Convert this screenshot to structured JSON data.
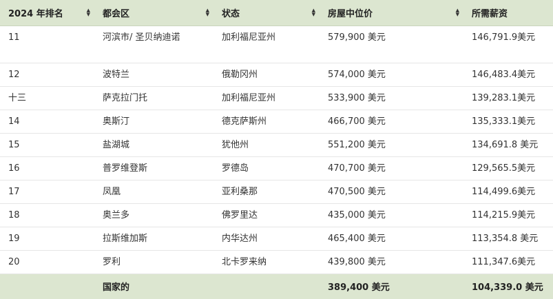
{
  "table": {
    "headers": [
      {
        "key": "rank",
        "label": "2024 年排名"
      },
      {
        "key": "metro",
        "label": "都会区"
      },
      {
        "key": "state",
        "label": "状态"
      },
      {
        "key": "price",
        "label": "房屋中位价"
      },
      {
        "key": "salary",
        "label": "所需薪资"
      }
    ],
    "sort_icon": "sort-updown-icon",
    "rows": [
      {
        "rank": "11",
        "metro": "河滨市/ 圣贝纳迪诺",
        "state": "加利福尼亚州",
        "price": "579,900 美元",
        "salary": "146,791.9美元"
      },
      {
        "rank": "12",
        "metro": "波特兰",
        "state": "俄勒冈州",
        "price": "574,000 美元",
        "salary": "146,483.4美元"
      },
      {
        "rank": "十三",
        "metro": "萨克拉门托",
        "state": "加利福尼亚州",
        "price": "533,900 美元",
        "salary": "139,283.1美元"
      },
      {
        "rank": "14",
        "metro": "奥斯汀",
        "state": "德克萨斯州",
        "price": "466,700 美元",
        "salary": "135,333.1美元"
      },
      {
        "rank": "15",
        "metro": "盐湖城",
        "state": "犹他州",
        "price": "551,200 美元",
        "salary": "134,691.8 美元"
      },
      {
        "rank": "16",
        "metro": "普罗维登斯",
        "state": "罗德岛",
        "price": "470,700 美元",
        "salary": "129,565.5美元"
      },
      {
        "rank": "17",
        "metro": "凤凰",
        "state": "亚利桑那",
        "price": "470,500 美元",
        "salary": "114,499.6美元"
      },
      {
        "rank": "18",
        "metro": "奥兰多",
        "state": "佛罗里达",
        "price": "435,000 美元",
        "salary": "114,215.9美元"
      },
      {
        "rank": "19",
        "metro": "拉斯维加斯",
        "state": "内华达州",
        "price": "465,400 美元",
        "salary": "113,354.8 美元"
      },
      {
        "rank": "20",
        "metro": "罗利",
        "state": "北卡罗来纳",
        "price": "439,800 美元",
        "salary": "111,347.6美元"
      }
    ],
    "footer": {
      "rank": "",
      "metro": "国家的",
      "state": "",
      "price": "389,400 美元",
      "salary": "104,339.0 美元"
    }
  },
  "colors": {
    "header_bg": "#dce6d0",
    "row_border": "#e6e6e6"
  }
}
